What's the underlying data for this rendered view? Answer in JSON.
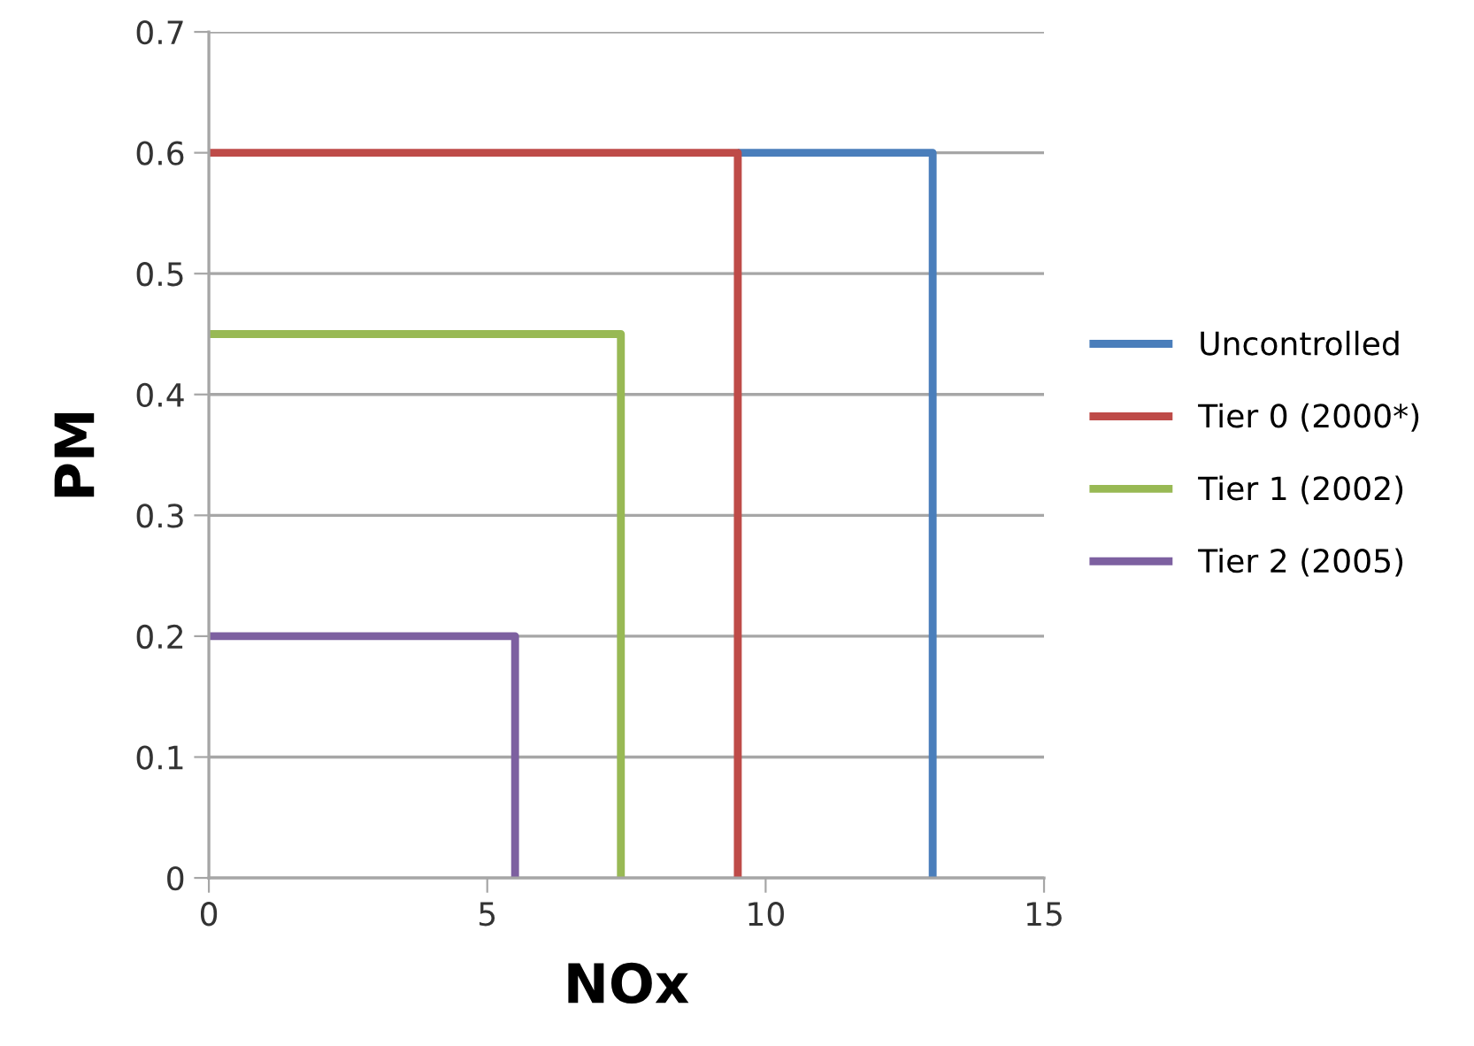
{
  "chart_data": {
    "type": "line",
    "xlabel": "NOx",
    "ylabel": "PM",
    "xlim": [
      0,
      15
    ],
    "xticks": [
      0,
      5,
      10,
      15
    ],
    "ylim": [
      0,
      0.7
    ],
    "yticks": [
      0,
      0.1,
      0.2,
      0.3,
      0.4,
      0.5,
      0.6,
      0.7
    ],
    "grid": "y",
    "legend": "right",
    "marker": "none",
    "line_style": "solid",
    "series": [
      {
        "name": "Uncontrolled",
        "color": "#4a7ebb",
        "x": [
          9.5,
          13,
          13
        ],
        "values": [
          0.6,
          0.6,
          0
        ]
      },
      {
        "name": "Tier 0 (2000*)",
        "color": "#be4b48",
        "x": [
          0,
          9.5,
          9.5
        ],
        "values": [
          0.6,
          0.6,
          0
        ]
      },
      {
        "name": "Tier 1 (2002)",
        "color": "#98b954",
        "x": [
          0,
          7.4,
          7.4
        ],
        "values": [
          0.45,
          0.45,
          0
        ]
      },
      {
        "name": "Tier 2 (2005)",
        "color": "#7d60a0",
        "x": [
          0,
          5.5,
          5.5
        ],
        "values": [
          0.2,
          0.2,
          0
        ]
      }
    ]
  }
}
